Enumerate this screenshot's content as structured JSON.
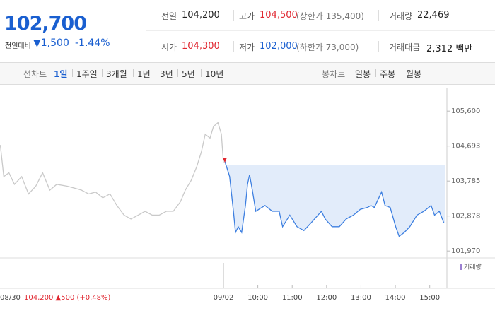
{
  "quote": {
    "price": "102,700",
    "change_caption": "전일대비",
    "change": "▼1,500",
    "change_rate": "-1.44%"
  },
  "summary": [
    [
      {
        "label": "전일",
        "value": "104,200"
      },
      {
        "label": "고가",
        "value": "104,500",
        "note": "(상한가 135,400)",
        "color": "#e0262f"
      },
      {
        "label": "거래량",
        "value": "22,469"
      }
    ],
    [
      {
        "label": "시가",
        "value": "104,300",
        "color": "#e0262f"
      },
      {
        "label": "저가",
        "value": "102,000",
        "note": "(하한가 73,000)",
        "color": "#1a5fd0"
      },
      {
        "label": "거래대금",
        "value": "2,312 백만"
      }
    ]
  ],
  "tabs": {
    "line": "선차트",
    "periods": [
      "1일",
      "1주일",
      "3개월",
      "1년",
      "3년",
      "5년",
      "10년"
    ],
    "active": 0,
    "candle": "봉차트",
    "candles": [
      "일봉",
      "주봉",
      "월봉"
    ]
  },
  "chart_data": {
    "type": "line",
    "xlim": [
      2.5,
      15.5
    ],
    "ylim": [
      101790,
      106190
    ],
    "xticks": [
      {
        "value": 2.8,
        "label": "08/30"
      },
      {
        "value": 9,
        "label": "09/02"
      },
      {
        "value": 10,
        "label": "10:00"
      },
      {
        "value": 11,
        "label": "11:00"
      },
      {
        "value": 12,
        "label": "12:00"
      },
      {
        "value": 13,
        "label": "13:00"
      },
      {
        "value": 14,
        "label": "14:00"
      },
      {
        "value": 15,
        "label": "15:00"
      }
    ],
    "yticks": [
      {
        "value": 105600,
        "label": "105,600"
      },
      {
        "value": 104693,
        "label": "104,693"
      },
      {
        "value": 103785,
        "label": "103,785"
      },
      {
        "value": 102878,
        "label": "102,878"
      },
      {
        "value": 101970,
        "label": "101,970"
      }
    ],
    "reference_line": 104200,
    "annotation": "104,200 ▲500 (+0.48%)",
    "volume_label": "거래량",
    "series": [
      {
        "color": "#c9c9c9",
        "x": [
          2.51,
          2.61,
          2.76,
          2.92,
          3.13,
          3.33,
          3.54,
          3.74,
          3.95,
          4.15,
          4.46,
          4.67,
          4.87,
          5.08,
          5.28,
          5.49,
          5.7,
          5.9,
          6.11,
          6.31,
          6.52,
          6.72,
          6.93,
          7.13,
          7.34,
          7.54,
          7.75,
          7.89,
          8.06,
          8.22,
          8.36,
          8.47,
          8.61,
          8.71,
          8.84,
          8.94,
          9.0
        ],
        "values": [
          104720,
          103900,
          104000,
          103700,
          103900,
          103450,
          103650,
          104000,
          103550,
          103700,
          103650,
          103600,
          103550,
          103450,
          103500,
          103350,
          103450,
          103150,
          102900,
          102800,
          102900,
          103000,
          102900,
          102900,
          103000,
          103000,
          103250,
          103550,
          103800,
          104150,
          104550,
          105000,
          104900,
          105200,
          105300,
          105000,
          104250
        ]
      },
      {
        "color": "#3d7fe0",
        "fill": "#e2ecfa",
        "x": [
          9.04,
          9.18,
          9.29,
          9.35,
          9.43,
          9.53,
          9.64,
          9.7,
          9.76,
          9.84,
          9.94,
          10.07,
          10.21,
          10.42,
          10.62,
          10.72,
          10.93,
          11.14,
          11.34,
          11.55,
          11.75,
          11.85,
          11.96,
          12.16,
          12.37,
          12.57,
          12.78,
          12.98,
          13.19,
          13.29,
          13.39,
          13.6,
          13.7,
          13.85,
          14.01,
          14.11,
          14.26,
          14.42,
          14.63,
          14.83,
          15.04,
          15.14,
          15.28,
          15.41
        ],
        "values": [
          104300,
          103900,
          103000,
          102450,
          102600,
          102450,
          103150,
          103700,
          103950,
          103550,
          103000,
          103075,
          103150,
          103000,
          103000,
          102600,
          102900,
          102600,
          102500,
          102700,
          102900,
          103000,
          102800,
          102600,
          102600,
          102800,
          102900,
          103050,
          103100,
          103150,
          103100,
          103500,
          103150,
          103100,
          102600,
          102350,
          102450,
          102600,
          102900,
          103000,
          103150,
          102900,
          103000,
          102700
        ]
      }
    ]
  }
}
